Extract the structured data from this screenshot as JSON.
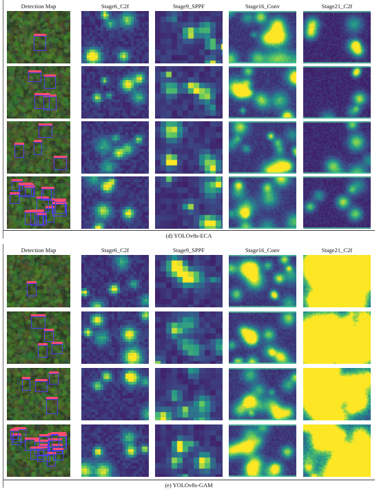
{
  "panels": [
    {
      "caption": "(d)   YOLOv8s-ECA",
      "headers": [
        "Detection Map",
        "Stage6_C2f",
        "Stage9_SPPF",
        "Stage16_Conv",
        "Stage21_C2f"
      ]
    },
    {
      "caption": "(e)   YOLOv8s-GAM",
      "headers": [
        "Detection Map",
        "Stage6_C2f",
        "Stage9_SPPF",
        "Stage16_Conv",
        "Stage21_C2f"
      ]
    }
  ],
  "colors": {
    "viridis_low": "#3b0f70",
    "viridis_mid": "#21908c",
    "viridis_high": "#fde725",
    "bbox": "#4b3cf0",
    "bbox_label": "#ff4d6d"
  }
}
